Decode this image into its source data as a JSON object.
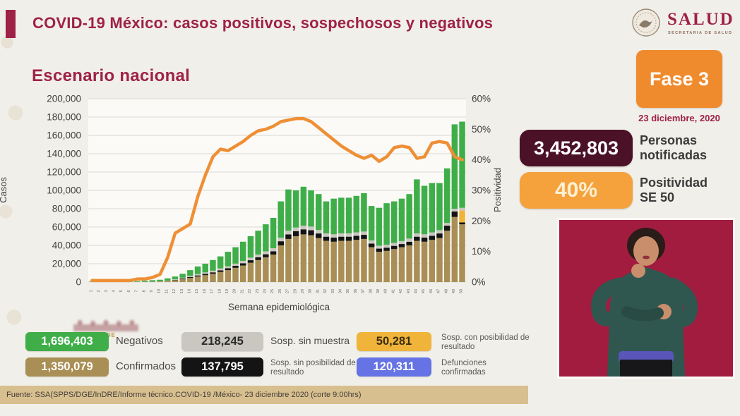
{
  "colors": {
    "maroon": "#9e2148",
    "dark_plum": "#4a1127",
    "badge_orange": "#f08b2d",
    "stat_orange": "#f5a23d",
    "stat_orange_text": "#fdf0d5",
    "footer_bg": "#d8bf8f",
    "video_bg": "#a21c3f",
    "page_bg": "#f1efe9"
  },
  "header": {
    "title": "COVID-19 México: casos positivos, sospechosos y negativos",
    "logo_name": "SALUD",
    "logo_subtitle": "SECRETARIA DE SALUD"
  },
  "section_title": "Escenario nacional",
  "phase": {
    "label": "Fase 3",
    "date": "23 diciembre, 2020"
  },
  "stats": [
    {
      "value": "3,452,803",
      "label_line1": "Personas",
      "label_line2": "notificadas",
      "box": "#4a1127",
      "text": "#ffffff"
    },
    {
      "value": "40%",
      "label_line1": "Positividad",
      "label_line2": "SE 50",
      "box": "#f5a23d",
      "text": "#fdf0d5"
    }
  ],
  "watermark": {
    "text": "GOBIERNO DE"
  },
  "legend": {
    "items": [
      {
        "value": "1,696,403",
        "label": "Negativos",
        "color": "#3fae49",
        "text": "#ffffff"
      },
      {
        "value": "218,245",
        "label": "Sosp. sin muestra",
        "color": "#c9c7c0",
        "text": "#2b2b2b"
      },
      {
        "value": "50,281",
        "label": "Sosp. con posibilidad de resultado",
        "color": "#f0b43a",
        "text": "#3a2d10"
      },
      {
        "value": "1,350,079",
        "label": "Confirmados",
        "color": "#a98e55",
        "text": "#ffffff"
      },
      {
        "value": "137,795",
        "label": "Sosp. sin posibilidad de resultado",
        "color": "#141414",
        "text": "#ffffff"
      },
      {
        "value": "120,311",
        "label": "Defunciones confirmadas",
        "color": "#6673e5",
        "text": "#ffffff"
      }
    ]
  },
  "footer": {
    "source": "Fuente: SSA(SPPS/DGE/InDRE/Informe técnico.COVID-19 /México- 23 diciembre 2020 (corte 9:00hrs)"
  },
  "chart_data": {
    "type": "bar",
    "subtype": "stacked-bars-with-line",
    "title": "Escenario nacional",
    "xlabel": "Semana epidemiológica",
    "ylabel_left": "Casos",
    "ylabel_right": "Positividad",
    "ylim_left": [
      0,
      200000
    ],
    "ylim_right": [
      0,
      60
    ],
    "yticks_left": [
      0,
      20000,
      40000,
      60000,
      80000,
      100000,
      120000,
      140000,
      160000,
      180000,
      200000
    ],
    "yticks_right": [
      0,
      10,
      20,
      30,
      40,
      50,
      60
    ],
    "grid": true,
    "legend_position": "bottom",
    "x": [
      1,
      2,
      3,
      4,
      5,
      6,
      7,
      8,
      9,
      10,
      11,
      12,
      13,
      14,
      15,
      16,
      17,
      18,
      19,
      20,
      21,
      22,
      23,
      24,
      25,
      26,
      27,
      28,
      29,
      30,
      31,
      32,
      33,
      34,
      35,
      36,
      37,
      38,
      39,
      40,
      41,
      42,
      43,
      44,
      45,
      46,
      47,
      48,
      49,
      50
    ],
    "series": [
      {
        "name": "Confirmados",
        "color": "#a98e55",
        "values": [
          100,
          100,
          100,
          100,
          200,
          200,
          200,
          300,
          400,
          600,
          1200,
          2000,
          3000,
          4500,
          6000,
          7500,
          9000,
          11000,
          13000,
          15500,
          18000,
          21000,
          24000,
          27000,
          30000,
          40000,
          47000,
          50000,
          52000,
          51000,
          48000,
          45000,
          44000,
          45000,
          45000,
          46000,
          47000,
          38000,
          33000,
          34000,
          36000,
          38000,
          40000,
          45000,
          44000,
          46000,
          48000,
          56000,
          71000,
          63000
        ]
      },
      {
        "name": "Sosp. sin posibilidad de resultado",
        "color": "#141414",
        "values": [
          0,
          0,
          0,
          0,
          0,
          0,
          0,
          0,
          0,
          0,
          0,
          400,
          800,
          1000,
          1200,
          1400,
          1600,
          1800,
          2000,
          2200,
          2500,
          2800,
          3000,
          3300,
          3500,
          4500,
          5000,
          5500,
          5500,
          5500,
          5000,
          4500,
          4500,
          4500,
          4500,
          4500,
          4500,
          4000,
          3500,
          3500,
          3500,
          3500,
          4000,
          4500,
          4500,
          4500,
          5000,
          5500,
          6000,
          2000
        ]
      },
      {
        "name": "Sosp. con posibilidad de resultado",
        "color": "#f0b43a",
        "values": [
          0,
          0,
          0,
          0,
          0,
          0,
          0,
          0,
          0,
          0,
          0,
          0,
          0,
          0,
          0,
          0,
          0,
          0,
          0,
          0,
          0,
          0,
          0,
          0,
          0,
          0,
          0,
          0,
          0,
          0,
          0,
          0,
          0,
          0,
          0,
          0,
          0,
          0,
          0,
          0,
          0,
          0,
          0,
          0,
          0,
          0,
          0,
          0,
          0,
          13000
        ]
      },
      {
        "name": "Sosp. sin muestra",
        "color": "#c9c7c0",
        "values": [
          100,
          100,
          100,
          100,
          100,
          100,
          100,
          100,
          100,
          100,
          300,
          600,
          1000,
          1200,
          1400,
          1600,
          1800,
          2000,
          2200,
          2400,
          2600,
          2800,
          3000,
          3200,
          3400,
          3800,
          4000,
          4000,
          4000,
          4000,
          3800,
          3600,
          3600,
          3600,
          3600,
          3600,
          3600,
          3400,
          3200,
          3200,
          3200,
          3200,
          3400,
          3600,
          3600,
          3600,
          3600,
          3000,
          3000,
          3000
        ]
      },
      {
        "name": "Negativos",
        "color": "#3fae49",
        "values": [
          400,
          500,
          600,
          600,
          600,
          700,
          700,
          1100,
          1500,
          1800,
          2500,
          3000,
          4200,
          6300,
          8400,
          9500,
          11600,
          13200,
          15800,
          17900,
          20900,
          23400,
          26000,
          29500,
          33100,
          39700,
          45000,
          40500,
          42500,
          39500,
          39200,
          34900,
          38900,
          38900,
          38900,
          39900,
          41900,
          37600,
          41300,
          45300,
          45300,
          46300,
          48600,
          58900,
          52900,
          53900,
          51400,
          59500,
          92000,
          94000
        ]
      }
    ],
    "line": {
      "name": "Positividad (%)",
      "color": "#ef8f35",
      "values": [
        0.5,
        0.5,
        0.5,
        0.5,
        0.5,
        0.5,
        1,
        1,
        1.5,
        2.5,
        8,
        16,
        17.5,
        19,
        28,
        35,
        41,
        43.5,
        43,
        44.5,
        46,
        48,
        49.5,
        50,
        51,
        52.5,
        53,
        53.5,
        53.5,
        52.5,
        50.5,
        48.5,
        46.5,
        44.5,
        43,
        41.5,
        40.5,
        41.5,
        39.5,
        41,
        44,
        44.5,
        44,
        40.5,
        41,
        45.5,
        46,
        45.5,
        41,
        40
      ]
    }
  }
}
